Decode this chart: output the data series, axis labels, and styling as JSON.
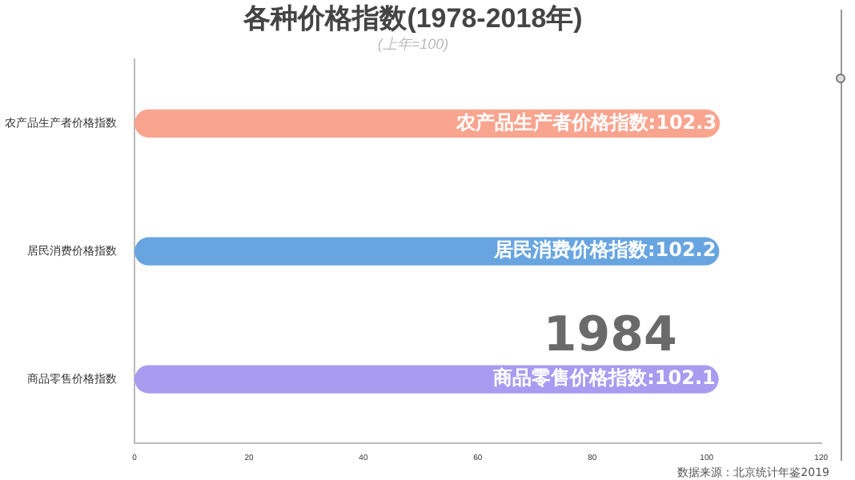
{
  "chart_data": {
    "type": "bar",
    "orientation": "horizontal",
    "title": "各种价格指数(1978-2018年)",
    "subtitle": "(上年=100)",
    "categories": [
      "农产品生产者价格指数",
      "居民消费价格指数",
      "商品零售价格指数"
    ],
    "series": [
      {
        "colors": [
          "#f9a48f",
          "#68a5e0",
          "#a99bf0"
        ],
        "values": [
          102.3,
          102.2,
          102.1
        ],
        "value_labels": [
          "农产品生产者价格指数:102.3",
          "居民消费价格指数:102.2",
          "商品零售价格指数:102.1"
        ]
      }
    ],
    "xlim": [
      0,
      120
    ],
    "xticks": [
      0,
      20,
      40,
      60,
      80,
      100,
      120
    ],
    "annotations": [
      "1984",
      "数据来源：北京统计年鉴2019"
    ]
  }
}
